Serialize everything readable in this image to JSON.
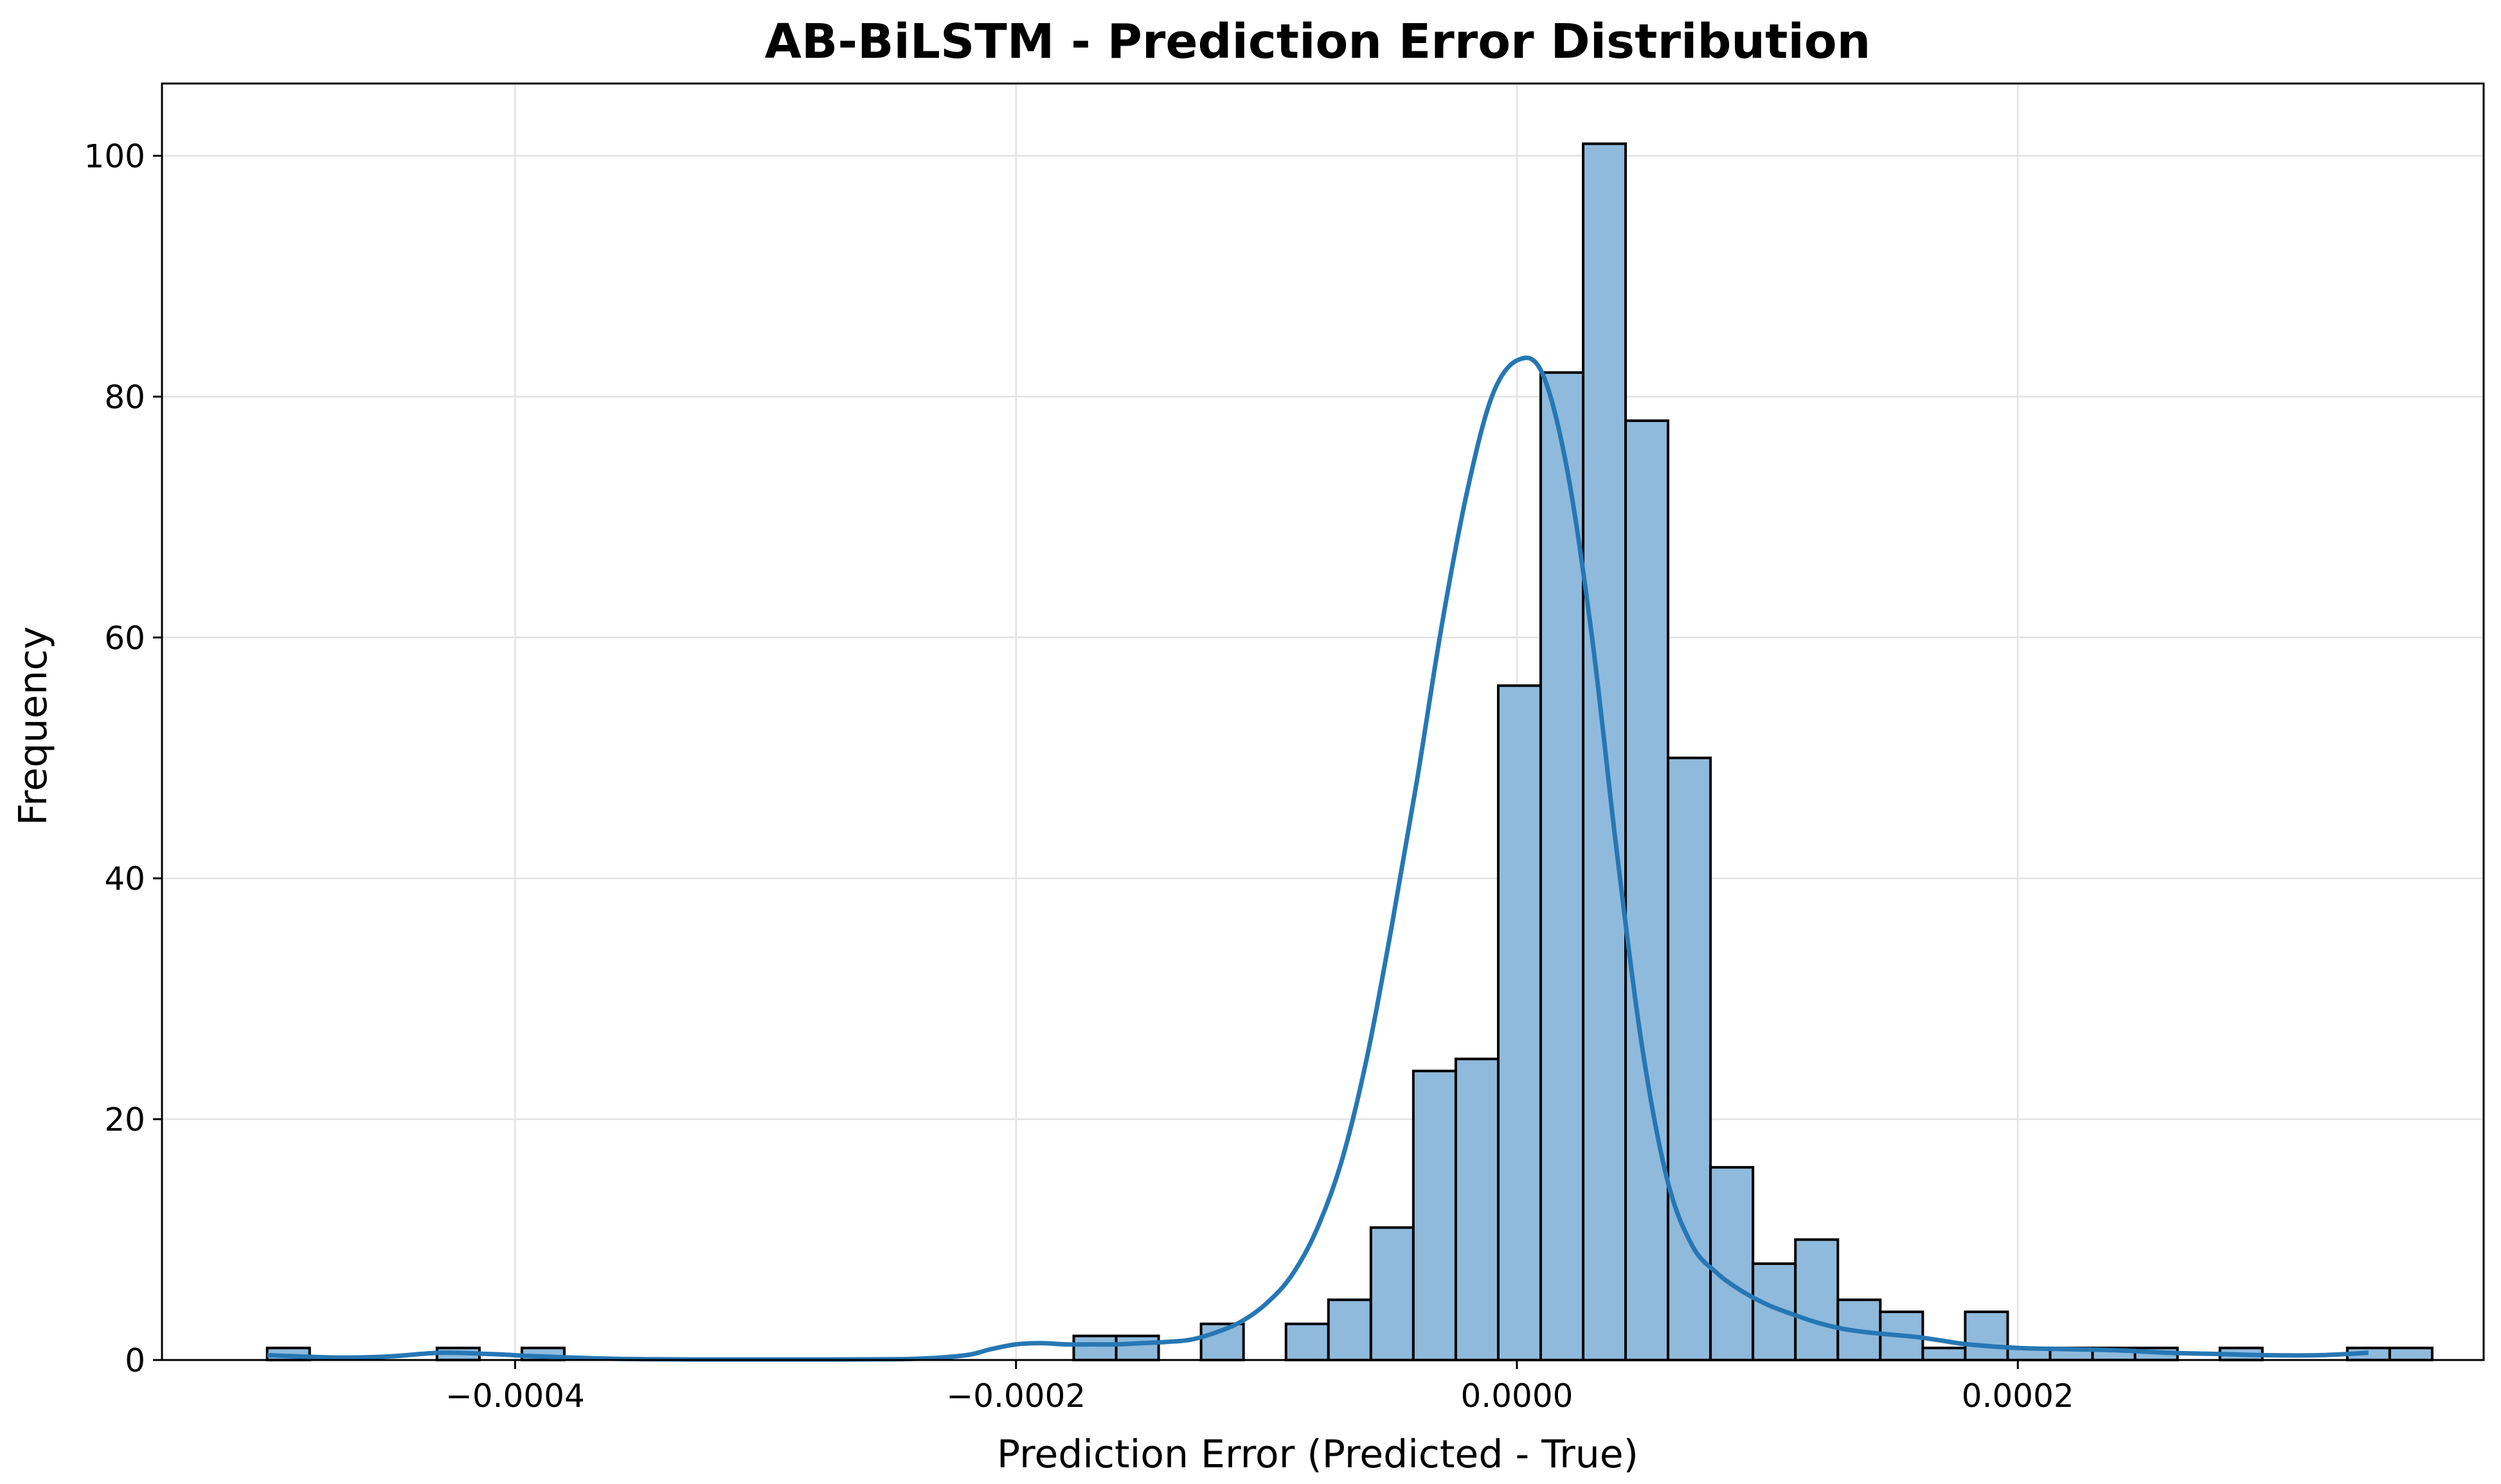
{
  "chart_data": {
    "type": "bar",
    "title": "AB-BiLSTM - Prediction Error Distribution",
    "xlabel": "Prediction Error (Predicted - True)",
    "ylabel": "Frequency",
    "xlim": [
      -0.000541,
      0.000386
    ],
    "ylim": [
      0,
      106
    ],
    "xticks": [
      -0.0004,
      -0.0002,
      0.0,
      0.0002
    ],
    "xtick_labels": [
      "−0.0004",
      "−0.0002",
      "0.0000",
      "0.0002"
    ],
    "yticks": [
      0,
      20,
      40,
      60,
      80,
      100
    ],
    "ytick_labels": [
      "0",
      "20",
      "40",
      "60",
      "80",
      "100"
    ],
    "grid": true,
    "bin_start": -0.000499,
    "bin_width": 1.695e-05,
    "values": [
      1,
      0,
      0,
      0,
      1,
      0,
      1,
      0,
      0,
      0,
      0,
      0,
      0,
      0,
      0,
      0,
      0,
      0,
      0,
      2,
      2,
      0,
      3,
      0,
      3,
      5,
      11,
      24,
      25,
      56,
      82,
      101,
      78,
      50,
      16,
      8,
      10,
      5,
      4,
      1,
      4,
      1,
      1,
      1,
      1,
      0,
      1,
      0,
      0,
      1,
      1
    ],
    "kde": {
      "x": [
        -0.000499,
        -0.00047,
        -0.00045,
        -0.00043,
        -0.00041,
        -0.00039,
        -0.00036,
        -0.00033,
        -0.0003,
        -0.00027,
        -0.00024,
        -0.00022,
        -0.00021,
        -0.0002,
        -0.00019,
        -0.00018,
        -0.00017,
        -0.00016,
        -0.00015,
        -0.00014,
        -0.00013,
        -0.00012,
        -0.00011,
        -0.0001,
        -9e-05,
        -8e-05,
        -7e-05,
        -6e-05,
        -5e-05,
        -4e-05,
        -3e-05,
        -2e-05,
        -1e-05,
        0.0,
        1e-05,
        2e-05,
        3e-05,
        4e-05,
        5e-05,
        6e-05,
        7e-05,
        8e-05,
        9e-05,
        0.0001,
        0.00011,
        0.00012,
        0.00013,
        0.00014,
        0.00015,
        0.00016,
        0.00017,
        0.00018,
        0.0002,
        0.00022,
        0.00024,
        0.00026,
        0.00028,
        0.0003,
        0.00032,
        0.00034
      ],
      "y": [
        0.4,
        0.2,
        0.3,
        0.6,
        0.5,
        0.3,
        0.1,
        0.05,
        0.05,
        0.05,
        0.1,
        0.4,
        0.9,
        1.3,
        1.4,
        1.3,
        1.3,
        1.3,
        1.4,
        1.5,
        1.7,
        2.3,
        3.2,
        4.7,
        7.0,
        10.8,
        16.5,
        25,
        36,
        48,
        61,
        72,
        80,
        83,
        82,
        74,
        60,
        42,
        26,
        15,
        9.5,
        7.2,
        5.7,
        4.6,
        3.8,
        3.1,
        2.6,
        2.3,
        2.1,
        1.9,
        1.6,
        1.3,
        1.0,
        0.9,
        0.8,
        0.6,
        0.5,
        0.4,
        0.4,
        0.6
      ]
    },
    "colors": {
      "bar_fill": "#8fbadc",
      "bar_edge": "#000000",
      "kde_line": "#2677b4",
      "grid": "#e3e3e3"
    }
  }
}
